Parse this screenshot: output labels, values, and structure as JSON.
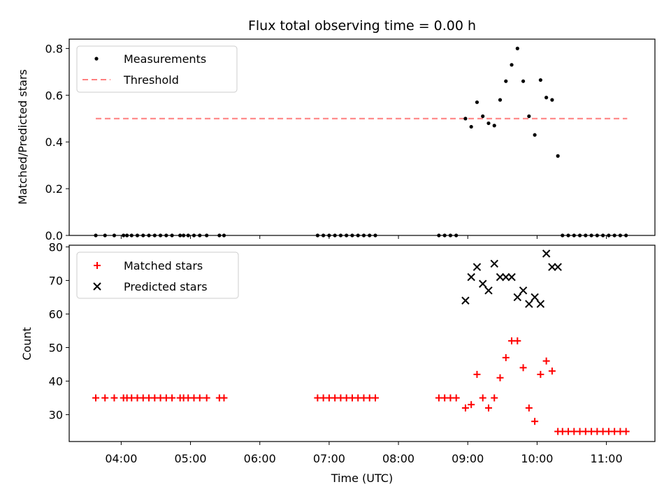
{
  "chart_data": [
    {
      "type": "scatter",
      "title": "Flux total observing time = 0.00 h",
      "xlabel": "",
      "ylabel": "Matched/Predicted stars",
      "ylim": [
        0,
        0.84
      ],
      "xlim_hours": [
        3.25,
        11.7
      ],
      "yticks": [
        0.0,
        0.2,
        0.4,
        0.6,
        0.8
      ],
      "ytick_labels": [
        "0.0",
        "0.2",
        "0.4",
        "0.6",
        "0.8"
      ],
      "legend": {
        "placement": "top-left",
        "entries": [
          "Measurements",
          "Threshold"
        ]
      },
      "threshold": {
        "name": "Threshold",
        "y": 0.5,
        "x_start": "03:38",
        "x_end": "11:18",
        "color": "#ff7f7f",
        "style": "dashed"
      },
      "series": [
        {
          "name": "Measurements",
          "color": "#000000",
          "marker": "dot",
          "points": [
            [
              "03:38",
              0
            ],
            [
              "03:46",
              0
            ],
            [
              "03:54",
              0
            ],
            [
              "04:02",
              0
            ],
            [
              "04:05",
              0
            ],
            [
              "04:09",
              0
            ],
            [
              "04:14",
              0
            ],
            [
              "04:19",
              0
            ],
            [
              "04:24",
              0
            ],
            [
              "04:29",
              0
            ],
            [
              "04:34",
              0
            ],
            [
              "04:39",
              0
            ],
            [
              "04:44",
              0
            ],
            [
              "04:51",
              0
            ],
            [
              "04:54",
              0
            ],
            [
              "04:58",
              0
            ],
            [
              "05:03",
              0
            ],
            [
              "05:08",
              0
            ],
            [
              "05:14",
              0
            ],
            [
              "05:25",
              0
            ],
            [
              "05:29",
              0
            ],
            [
              "06:50",
              0
            ],
            [
              "06:55",
              0
            ],
            [
              "07:00",
              0
            ],
            [
              "07:05",
              0
            ],
            [
              "07:10",
              0
            ],
            [
              "07:15",
              0
            ],
            [
              "07:20",
              0
            ],
            [
              "07:25",
              0
            ],
            [
              "07:30",
              0
            ],
            [
              "07:35",
              0
            ],
            [
              "07:40",
              0
            ],
            [
              "08:35",
              0
            ],
            [
              "08:40",
              0
            ],
            [
              "08:45",
              0
            ],
            [
              "08:50",
              0
            ],
            [
              "08:58",
              0.5
            ],
            [
              "09:03",
              0.465
            ],
            [
              "09:08",
              0.57
            ],
            [
              "09:13",
              0.51
            ],
            [
              "09:18",
              0.48
            ],
            [
              "09:23",
              0.47
            ],
            [
              "09:28",
              0.58
            ],
            [
              "09:33",
              0.66
            ],
            [
              "09:38",
              0.73
            ],
            [
              "09:43",
              0.8
            ],
            [
              "09:48",
              0.66
            ],
            [
              "09:53",
              0.51
            ],
            [
              "09:58",
              0.43
            ],
            [
              "10:03",
              0.665
            ],
            [
              "10:08",
              0.59
            ],
            [
              "10:13",
              0.58
            ],
            [
              "10:18",
              0.34
            ],
            [
              "10:22",
              0
            ],
            [
              "10:27",
              0
            ],
            [
              "10:32",
              0
            ],
            [
              "10:37",
              0
            ],
            [
              "10:42",
              0
            ],
            [
              "10:47",
              0
            ],
            [
              "10:52",
              0
            ],
            [
              "10:57",
              0
            ],
            [
              "11:02",
              0
            ],
            [
              "11:07",
              0
            ],
            [
              "11:12",
              0
            ],
            [
              "11:17",
              0
            ]
          ]
        }
      ]
    },
    {
      "type": "scatter",
      "title": "",
      "xlabel": "Time (UTC)",
      "ylabel": "Count",
      "ylim": [
        22,
        80.5
      ],
      "xlim_hours": [
        3.25,
        11.7
      ],
      "yticks": [
        30,
        40,
        50,
        60,
        70,
        80
      ],
      "ytick_labels": [
        "30",
        "40",
        "50",
        "60",
        "70",
        "80"
      ],
      "xticks_hours": [
        4,
        5,
        6,
        7,
        8,
        9,
        10,
        11
      ],
      "xtick_labels": [
        "04:00",
        "05:00",
        "06:00",
        "07:00",
        "08:00",
        "09:00",
        "10:00",
        "11:00"
      ],
      "legend": {
        "placement": "top-left",
        "entries": [
          "Matched stars",
          "Predicted stars"
        ]
      },
      "series": [
        {
          "name": "Matched stars",
          "color": "#ff0000",
          "marker": "plus",
          "points": [
            [
              "03:38",
              35
            ],
            [
              "03:46",
              35
            ],
            [
              "03:54",
              35
            ],
            [
              "04:02",
              35
            ],
            [
              "04:05",
              35
            ],
            [
              "04:09",
              35
            ],
            [
              "04:14",
              35
            ],
            [
              "04:19",
              35
            ],
            [
              "04:24",
              35
            ],
            [
              "04:29",
              35
            ],
            [
              "04:34",
              35
            ],
            [
              "04:39",
              35
            ],
            [
              "04:44",
              35
            ],
            [
              "04:51",
              35
            ],
            [
              "04:54",
              35
            ],
            [
              "04:58",
              35
            ],
            [
              "05:03",
              35
            ],
            [
              "05:08",
              35
            ],
            [
              "05:14",
              35
            ],
            [
              "05:25",
              35
            ],
            [
              "05:29",
              35
            ],
            [
              "06:50",
              35
            ],
            [
              "06:55",
              35
            ],
            [
              "07:00",
              35
            ],
            [
              "07:05",
              35
            ],
            [
              "07:10",
              35
            ],
            [
              "07:15",
              35
            ],
            [
              "07:20",
              35
            ],
            [
              "07:25",
              35
            ],
            [
              "07:30",
              35
            ],
            [
              "07:35",
              35
            ],
            [
              "07:40",
              35
            ],
            [
              "08:35",
              35
            ],
            [
              "08:40",
              35
            ],
            [
              "08:45",
              35
            ],
            [
              "08:50",
              35
            ],
            [
              "08:58",
              32
            ],
            [
              "09:03",
              33
            ],
            [
              "09:08",
              42
            ],
            [
              "09:13",
              35
            ],
            [
              "09:18",
              32
            ],
            [
              "09:23",
              35
            ],
            [
              "09:28",
              41
            ],
            [
              "09:33",
              47
            ],
            [
              "09:38",
              52
            ],
            [
              "09:43",
              52
            ],
            [
              "09:48",
              44
            ],
            [
              "09:53",
              32
            ],
            [
              "09:58",
              28
            ],
            [
              "10:03",
              42
            ],
            [
              "10:08",
              46
            ],
            [
              "10:13",
              43
            ],
            [
              "10:18",
              25
            ],
            [
              "10:22",
              25
            ],
            [
              "10:27",
              25
            ],
            [
              "10:32",
              25
            ],
            [
              "10:37",
              25
            ],
            [
              "10:42",
              25
            ],
            [
              "10:47",
              25
            ],
            [
              "10:52",
              25
            ],
            [
              "10:57",
              25
            ],
            [
              "11:02",
              25
            ],
            [
              "11:07",
              25
            ],
            [
              "11:12",
              25
            ],
            [
              "11:17",
              25
            ]
          ]
        },
        {
          "name": "Predicted stars",
          "color": "#000000",
          "marker": "x",
          "points": [
            [
              "08:58",
              64
            ],
            [
              "09:03",
              71
            ],
            [
              "09:08",
              74
            ],
            [
              "09:13",
              69
            ],
            [
              "09:18",
              67
            ],
            [
              "09:23",
              75
            ],
            [
              "09:28",
              71
            ],
            [
              "09:33",
              71
            ],
            [
              "09:38",
              71
            ],
            [
              "09:43",
              65
            ],
            [
              "09:48",
              67
            ],
            [
              "09:53",
              63
            ],
            [
              "09:58",
              65
            ],
            [
              "10:03",
              63
            ],
            [
              "10:08",
              78
            ],
            [
              "10:13",
              74
            ],
            [
              "10:18",
              74
            ]
          ]
        }
      ]
    }
  ]
}
